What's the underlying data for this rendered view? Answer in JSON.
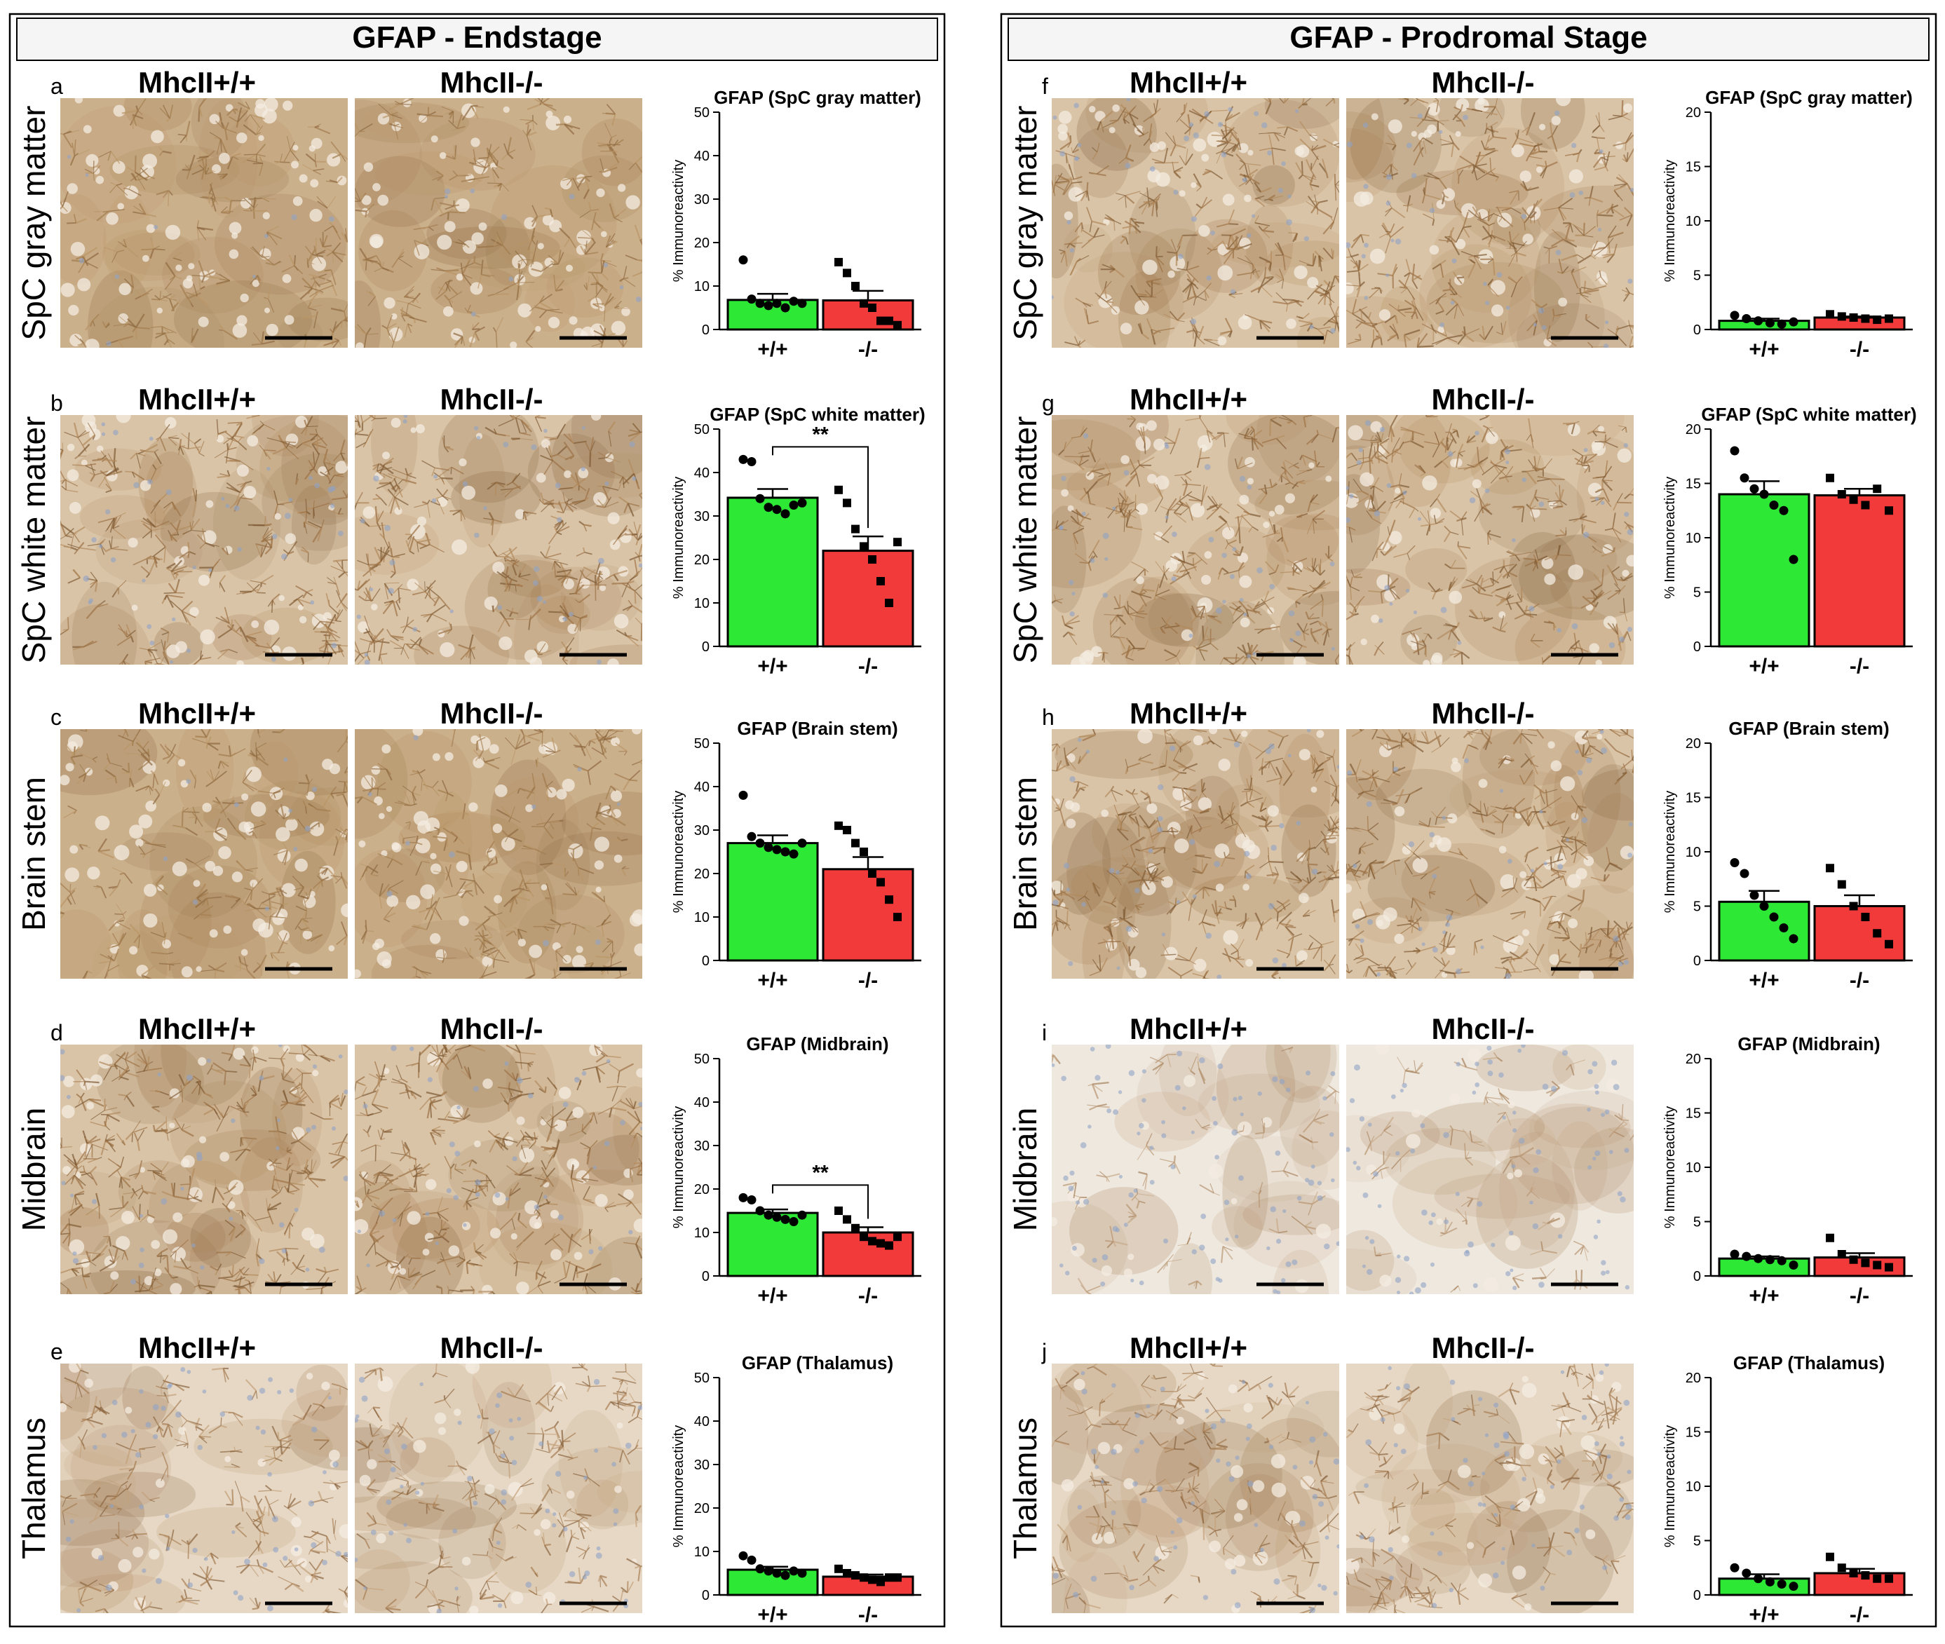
{
  "colors": {
    "wt": "#2ee836",
    "ko": "#f23a3a",
    "frame": "#000000",
    "header_bg": "#f5f5f5"
  },
  "x_tick_labels": [
    "+/+",
    "-/-"
  ],
  "y_axis_label": "% Immunoreactivity",
  "scale_bar": "scale-bar",
  "panels": [
    {
      "title": "GFAP - Endstage",
      "geno_labels": [
        "MhcII+/+",
        "MhcII-/-"
      ],
      "rows": [
        {
          "letter": "a",
          "region": "SpC gray matter",
          "tissue": "dense"
        },
        {
          "letter": "b",
          "region": "SpC white matter",
          "tissue": "mixed"
        },
        {
          "letter": "c",
          "region": "Brain stem",
          "tissue": "dense"
        },
        {
          "letter": "d",
          "region": "Midbrain",
          "tissue": "mixed"
        },
        {
          "letter": "e",
          "region": "Thalamus",
          "tissue": "light"
        }
      ]
    },
    {
      "title": "GFAP - Prodromal Stage",
      "geno_labels": [
        "MhcII+/+",
        "MhcII-/-"
      ],
      "rows": [
        {
          "letter": "f",
          "region": "SpC gray matter",
          "tissue": "mixed"
        },
        {
          "letter": "g",
          "region": "SpC white matter",
          "tissue": "mixed"
        },
        {
          "letter": "h",
          "region": "Brain stem",
          "tissue": "mixed"
        },
        {
          "letter": "i",
          "region": "Midbrain",
          "tissue": "pale"
        },
        {
          "letter": "j",
          "region": "Thalamus",
          "tissue": "light"
        }
      ]
    }
  ],
  "chart_data": [
    {
      "id": "a",
      "type": "bar",
      "title": "GFAP (SpC gray matter)",
      "ylabel": "% Immunoreactivity",
      "categories": [
        "+/+",
        "-/-"
      ],
      "ylim": [
        0,
        50
      ],
      "yticks": [
        0,
        10,
        20,
        30,
        40,
        50
      ],
      "series": [
        {
          "name": "+/+",
          "mean": 6.8,
          "sem": 1.4,
          "points": [
            16,
            7,
            6,
            5.5,
            6,
            5,
            6.5,
            6
          ]
        },
        {
          "name": "-/-",
          "mean": 6.7,
          "sem": 2.2,
          "points": [
            15.5,
            13,
            10,
            6,
            5,
            2,
            2,
            1
          ]
        }
      ],
      "significance": ""
    },
    {
      "id": "b",
      "type": "bar",
      "title": "GFAP (SpC white matter)",
      "ylabel": "% Immunoreactivity",
      "categories": [
        "+/+",
        "-/-"
      ],
      "ylim": [
        0,
        50
      ],
      "yticks": [
        0,
        10,
        20,
        30,
        40,
        50
      ],
      "series": [
        {
          "name": "+/+",
          "mean": 34.2,
          "sem": 2.0,
          "points": [
            43,
            42.5,
            34,
            32,
            31.5,
            30.5,
            32.5,
            33
          ]
        },
        {
          "name": "-/-",
          "mean": 22.0,
          "sem": 3.3,
          "points": [
            36,
            33,
            27,
            23,
            20,
            15,
            10,
            24
          ]
        }
      ],
      "significance": "**"
    },
    {
      "id": "c",
      "type": "bar",
      "title": "GFAP (Brain stem)",
      "ylabel": "% Immunoreactivity",
      "categories": [
        "+/+",
        "-/-"
      ],
      "ylim": [
        0,
        50
      ],
      "yticks": [
        0,
        10,
        20,
        30,
        40,
        50
      ],
      "series": [
        {
          "name": "+/+",
          "mean": 27.0,
          "sem": 1.8,
          "points": [
            38,
            28.5,
            27,
            26,
            25.5,
            25,
            24.5,
            27
          ]
        },
        {
          "name": "-/-",
          "mean": 21.0,
          "sem": 2.8,
          "points": [
            31,
            30,
            27,
            25,
            20,
            18,
            14,
            10
          ]
        }
      ],
      "significance": ""
    },
    {
      "id": "d",
      "type": "bar",
      "title": "GFAP (Midbrain)",
      "ylabel": "% Immunoreactivity",
      "categories": [
        "+/+",
        "-/-"
      ],
      "ylim": [
        0,
        50
      ],
      "yticks": [
        0,
        10,
        20,
        30,
        40,
        50
      ],
      "series": [
        {
          "name": "+/+",
          "mean": 14.5,
          "sem": 0.8,
          "points": [
            18,
            17.5,
            15,
            14,
            13.5,
            13,
            12.5,
            14
          ]
        },
        {
          "name": "-/-",
          "mean": 10.0,
          "sem": 1.2,
          "points": [
            15,
            13,
            11,
            9,
            8,
            7.5,
            7,
            9
          ]
        }
      ],
      "significance": "**"
    },
    {
      "id": "e",
      "type": "bar",
      "title": "GFAP (Thalamus)",
      "ylabel": "% Immunoreactivity",
      "categories": [
        "+/+",
        "-/-"
      ],
      "ylim": [
        0,
        50
      ],
      "yticks": [
        0,
        10,
        20,
        30,
        40,
        50
      ],
      "series": [
        {
          "name": "+/+",
          "mean": 5.8,
          "sem": 0.7,
          "points": [
            9,
            8,
            6,
            5.5,
            5,
            4.5,
            5.5,
            5
          ]
        },
        {
          "name": "-/-",
          "mean": 4.2,
          "sem": 0.5,
          "points": [
            6,
            5,
            4.5,
            4,
            3.5,
            3,
            4,
            4
          ]
        }
      ],
      "significance": ""
    },
    {
      "id": "f",
      "type": "bar",
      "title": "GFAP (SpC gray matter)",
      "ylabel": "% Immunoreactivity",
      "categories": [
        "+/+",
        "-/-"
      ],
      "ylim": [
        0,
        20
      ],
      "yticks": [
        0,
        5,
        10,
        15,
        20
      ],
      "series": [
        {
          "name": "+/+",
          "mean": 0.8,
          "sem": 0.2,
          "points": [
            1.3,
            1,
            0.8,
            0.6,
            0.5,
            0.7
          ]
        },
        {
          "name": "-/-",
          "mean": 1.1,
          "sem": 0.1,
          "points": [
            1.4,
            1.2,
            1.1,
            1,
            0.9,
            1
          ]
        }
      ],
      "significance": ""
    },
    {
      "id": "g",
      "type": "bar",
      "title": "GFAP (SpC white matter)",
      "ylabel": "% Immunoreactivity",
      "categories": [
        "+/+",
        "-/-"
      ],
      "ylim": [
        0,
        20
      ],
      "yticks": [
        0,
        5,
        10,
        15,
        20
      ],
      "series": [
        {
          "name": "+/+",
          "mean": 14.0,
          "sem": 1.2,
          "points": [
            18,
            15.5,
            14.5,
            14,
            13,
            12.5,
            8
          ]
        },
        {
          "name": "-/-",
          "mean": 13.9,
          "sem": 0.6,
          "points": [
            15.5,
            14,
            13.5,
            13,
            14.5,
            12.5
          ]
        }
      ],
      "significance": ""
    },
    {
      "id": "h",
      "type": "bar",
      "title": "GFAP (Brain stem)",
      "ylabel": "% Immunoreactivity",
      "categories": [
        "+/+",
        "-/-"
      ],
      "ylim": [
        0,
        20
      ],
      "yticks": [
        0,
        5,
        10,
        15,
        20
      ],
      "series": [
        {
          "name": "+/+",
          "mean": 5.4,
          "sem": 1.0,
          "points": [
            9,
            8,
            6,
            5,
            4,
            3,
            2
          ]
        },
        {
          "name": "-/-",
          "mean": 5.0,
          "sem": 1.0,
          "points": [
            8.5,
            7,
            5,
            4,
            2.5,
            1.5
          ]
        }
      ],
      "significance": ""
    },
    {
      "id": "i",
      "type": "bar",
      "title": "GFAP (Midbrain)",
      "ylabel": "% Immunoreactivity",
      "categories": [
        "+/+",
        "-/-"
      ],
      "ylim": [
        0,
        20
      ],
      "yticks": [
        0,
        5,
        10,
        15,
        20
      ],
      "series": [
        {
          "name": "+/+",
          "mean": 1.6,
          "sem": 0.2,
          "points": [
            2,
            1.8,
            1.6,
            1.5,
            1.4,
            1
          ]
        },
        {
          "name": "-/-",
          "mean": 1.7,
          "sem": 0.4,
          "points": [
            3.5,
            2,
            1.5,
            1.2,
            1,
            0.8
          ]
        }
      ],
      "significance": ""
    },
    {
      "id": "j",
      "type": "bar",
      "title": "GFAP (Thalamus)",
      "ylabel": "% Immunoreactivity",
      "categories": [
        "+/+",
        "-/-"
      ],
      "ylim": [
        0,
        20
      ],
      "yticks": [
        0,
        5,
        10,
        15,
        20
      ],
      "series": [
        {
          "name": "+/+",
          "mean": 1.5,
          "sem": 0.4,
          "points": [
            2.5,
            2,
            1.5,
            1.2,
            1,
            0.8
          ]
        },
        {
          "name": "-/-",
          "mean": 2.0,
          "sem": 0.4,
          "points": [
            3.5,
            2.5,
            2,
            1.8,
            1.5,
            1.5
          ]
        }
      ],
      "significance": ""
    }
  ]
}
